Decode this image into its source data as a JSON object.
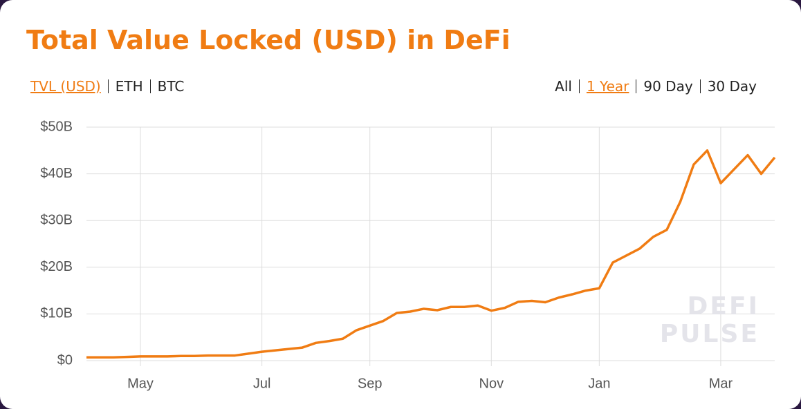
{
  "title": "Total Value Locked (USD) in DeFi",
  "metric_tabs": [
    "TVL (USD)",
    "ETH",
    "BTC"
  ],
  "active_metric_tab": 0,
  "range_tabs": [
    "All",
    "1 Year",
    "90 Day",
    "30 Day"
  ],
  "active_range_tab": 1,
  "watermark": [
    "DEFI",
    "PULSE"
  ],
  "chart_data": {
    "type": "line",
    "categories": [
      null,
      null,
      null,
      null,
      "May",
      null,
      null,
      null,
      null,
      null,
      null,
      null,
      null,
      "Jul",
      null,
      null,
      null,
      null,
      null,
      null,
      null,
      "Sep",
      null,
      null,
      null,
      null,
      null,
      null,
      null,
      null,
      "Nov",
      null,
      null,
      null,
      null,
      null,
      null,
      null,
      "Jan",
      null,
      null,
      null,
      null,
      null,
      null,
      null,
      null,
      "Mar",
      null,
      null,
      null,
      null
    ],
    "series": [
      {
        "name": "TVL (USD)",
        "color": "#f07c13",
        "values": [
          0.7,
          0.7,
          0.7,
          0.8,
          0.9,
          0.9,
          0.9,
          1.0,
          1.0,
          1.1,
          1.1,
          1.1,
          1.5,
          1.9,
          2.2,
          2.5,
          2.8,
          3.8,
          4.2,
          4.7,
          6.5,
          7.5,
          8.5,
          10.2,
          10.5,
          11.1,
          10.8,
          11.5,
          11.5,
          11.8,
          10.7,
          11.3,
          12.6,
          12.8,
          12.5,
          13.5,
          14.2,
          15.0,
          15.5,
          21,
          22.5,
          24,
          26.5,
          28,
          34,
          42,
          45,
          38,
          41,
          44,
          40,
          43.5
        ]
      }
    ],
    "ylim": [
      0,
      50
    ],
    "yticks": [
      {
        "value": 0,
        "label": "$0"
      },
      {
        "value": 10,
        "label": "$10B"
      },
      {
        "value": 20,
        "label": "$20B"
      },
      {
        "value": 30,
        "label": "$30B"
      },
      {
        "value": 40,
        "label": "$40B"
      },
      {
        "value": 50,
        "label": "$50B"
      }
    ],
    "grid": true
  }
}
